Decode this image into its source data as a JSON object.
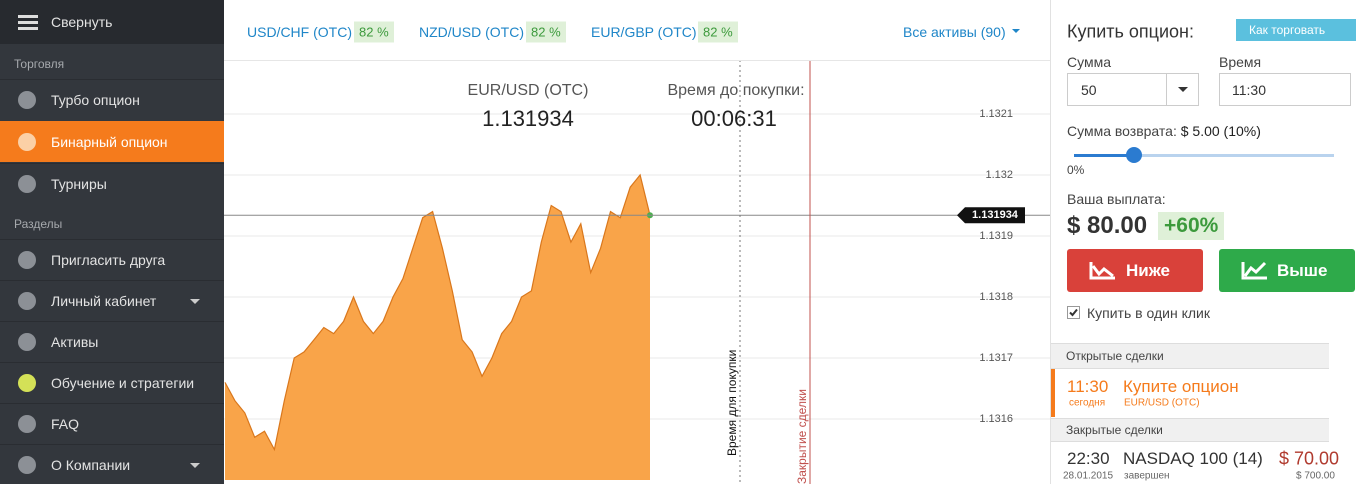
{
  "sidebar": {
    "collapse": "Свернуть",
    "sections": [
      {
        "title": "Торговля",
        "items": [
          "Турбо опцион",
          "Бинарный опцион",
          "Турниры"
        ]
      },
      {
        "title": "Разделы",
        "items": [
          "Пригласить друга",
          "Личный кабинет",
          "Активы",
          "Обучение и стратегии",
          "FAQ",
          "О Компании"
        ]
      }
    ]
  },
  "assets_bar": {
    "assets": [
      {
        "name": "USD/CHF (OTC)",
        "payout": "82 %"
      },
      {
        "name": "NZD/USD (OTC)",
        "payout": "82 %"
      },
      {
        "name": "EUR/GBP (OTC)",
        "payout": "82 %"
      }
    ],
    "all_assets": "Все активы (90)"
  },
  "chart": {
    "type": "area",
    "asset": "EUR/USD (OTC)",
    "price": "1.131934",
    "timer_label": "Время до покупки:",
    "timer": "00:06:31",
    "color": "#f9a449",
    "values": [
      1.13166,
      1.13163,
      1.13161,
      1.13157,
      1.13158,
      1.13155,
      1.13163,
      1.1317,
      1.13171,
      1.13173,
      1.13175,
      1.13174,
      1.13176,
      1.1318,
      1.13176,
      1.13174,
      1.13176,
      1.1318,
      1.13183,
      1.13188,
      1.13193,
      1.13194,
      1.13188,
      1.13181,
      1.13173,
      1.13171,
      1.13167,
      1.1317,
      1.13174,
      1.13176,
      1.1318,
      1.13181,
      1.13189,
      1.13195,
      1.13194,
      1.13189,
      1.13192,
      1.13184,
      1.13188,
      1.13194,
      1.13193,
      1.13198,
      1.132,
      1.131934
    ],
    "ylim": [
      1.1315,
      1.1322
    ],
    "yticks": [
      1.1321,
      1.132,
      1.1319,
      1.1318,
      1.1317,
      1.1316
    ],
    "current_price": 1.131934,
    "purchase_line_label": "Время для покупки",
    "close_line_label": "Закрытие сделки"
  },
  "option_panel": {
    "title": "Купить опцион:",
    "how_to": "Как торговать",
    "amount_label": "Сумма",
    "amount": "50",
    "time_label": "Время",
    "time": "11:30",
    "refund_label": "Сумма возврата:",
    "refund": "$ 5.00 (10%)",
    "slider_min": "0%",
    "payout_label": "Ваша выплата:",
    "payout": "$ 80.00",
    "payout_percent": "+60%",
    "lower": "Ниже",
    "higher": "Выше",
    "one_click": "Купить в один клик"
  },
  "open_trades": {
    "title": "Открытые сделки",
    "rows": [
      {
        "time": "11:30",
        "date": "сегодня",
        "action": "Купите опцион",
        "asset": "EUR/USD (OTC)"
      }
    ]
  },
  "closed_trades": {
    "title": "Закрытые сделки",
    "rows": [
      {
        "time": "22:30",
        "date": "28.01.2015",
        "asset": "NASDAQ 100 (14)",
        "status": "завершен",
        "result": "$ 70.00",
        "amount": "$ 700.00"
      }
    ]
  }
}
